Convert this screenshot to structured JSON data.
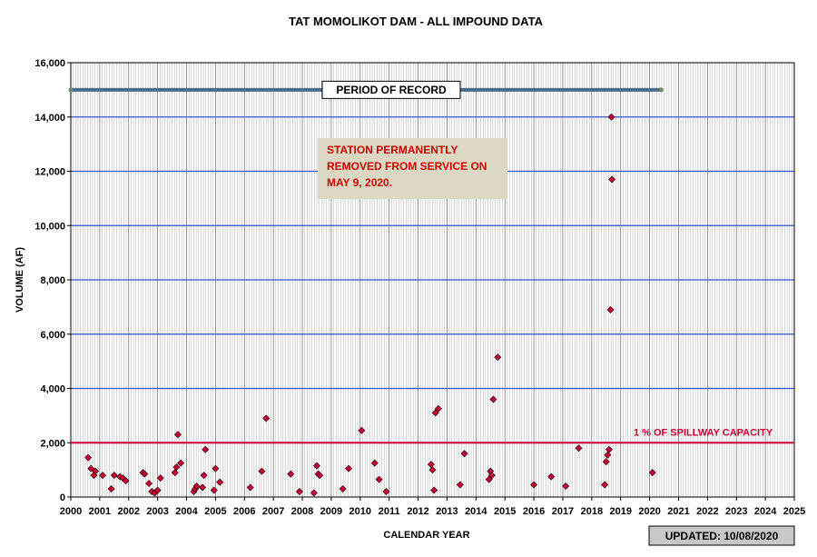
{
  "chart_data": {
    "type": "scatter",
    "title": "TAT MOMOLIKOT DAM - ALL IMPOUND DATA",
    "xlabel": "CALENDAR YEAR",
    "ylabel": "VOLUME (AF)",
    "xlim": [
      2000,
      2025
    ],
    "ylim": [
      0,
      16000
    ],
    "x_ticks": [
      "2000",
      "2001",
      "2002",
      "2003",
      "2004",
      "2005",
      "2006",
      "2007",
      "2008",
      "2009",
      "2010",
      "2011",
      "2012",
      "2013",
      "2014",
      "2015",
      "2016",
      "2017",
      "2018",
      "2019",
      "2020",
      "2021",
      "2022",
      "2023",
      "2024",
      "2025"
    ],
    "y_ticks": [
      "0",
      "2,000",
      "4,000",
      "6,000",
      "8,000",
      "10,000",
      "12,000",
      "14,000",
      "16,000"
    ],
    "grid": true,
    "series": [
      {
        "color": "#cc0033",
        "points": [
          [
            2000.6,
            1450
          ],
          [
            2000.7,
            1050
          ],
          [
            2000.8,
            800
          ],
          [
            2000.85,
            950
          ],
          [
            2001.1,
            800
          ],
          [
            2001.4,
            300
          ],
          [
            2001.5,
            800
          ],
          [
            2001.7,
            750
          ],
          [
            2001.8,
            700
          ],
          [
            2001.9,
            600
          ],
          [
            2002.5,
            900
          ],
          [
            2002.55,
            850
          ],
          [
            2002.7,
            500
          ],
          [
            2002.8,
            200
          ],
          [
            2002.9,
            150
          ],
          [
            2003.0,
            250
          ],
          [
            2003.1,
            700
          ],
          [
            2003.6,
            900
          ],
          [
            2003.65,
            1100
          ],
          [
            2003.7,
            2300
          ],
          [
            2003.8,
            1250
          ],
          [
            2004.25,
            200
          ],
          [
            2004.3,
            300
          ],
          [
            2004.35,
            400
          ],
          [
            2004.55,
            350
          ],
          [
            2004.6,
            800
          ],
          [
            2004.65,
            1750
          ],
          [
            2004.95,
            250
          ],
          [
            2005.0,
            1050
          ],
          [
            2005.15,
            550
          ],
          [
            2006.2,
            350
          ],
          [
            2006.6,
            950
          ],
          [
            2006.75,
            2900
          ],
          [
            2007.6,
            850
          ],
          [
            2007.9,
            200
          ],
          [
            2008.4,
            150
          ],
          [
            2008.5,
            1150
          ],
          [
            2008.55,
            850
          ],
          [
            2008.6,
            800
          ],
          [
            2009.4,
            300
          ],
          [
            2009.6,
            1050
          ],
          [
            2010.05,
            2450
          ],
          [
            2010.5,
            1250
          ],
          [
            2010.65,
            650
          ],
          [
            2010.9,
            200
          ],
          [
            2012.45,
            1200
          ],
          [
            2012.5,
            1000
          ],
          [
            2012.55,
            250
          ],
          [
            2012.6,
            3100
          ],
          [
            2012.7,
            3250
          ],
          [
            2013.45,
            450
          ],
          [
            2013.6,
            1600
          ],
          [
            2014.45,
            650
          ],
          [
            2014.5,
            950
          ],
          [
            2014.55,
            800
          ],
          [
            2014.6,
            3600
          ],
          [
            2014.75,
            5150
          ],
          [
            2016.0,
            450
          ],
          [
            2016.6,
            750
          ],
          [
            2017.1,
            400
          ],
          [
            2017.55,
            1800
          ],
          [
            2018.45,
            450
          ],
          [
            2018.5,
            1300
          ],
          [
            2018.55,
            1550
          ],
          [
            2018.6,
            1750
          ],
          [
            2018.65,
            6900
          ],
          [
            2018.68,
            14000
          ],
          [
            2018.7,
            11700
          ],
          [
            2020.1,
            900
          ]
        ]
      }
    ],
    "reference_lines": [
      {
        "label": "1 % OF SPILLWAY CAPACITY",
        "y": 2000,
        "color": "#cc0033"
      },
      {
        "label": "PERIOD OF RECORD",
        "y": 15000,
        "x_start": 2000,
        "x_end": 2020.4,
        "color": "#4a6a8a"
      }
    ],
    "annotation": {
      "text": [
        "STATION PERMANENTLY",
        "REMOVED FROM SERVICE ON",
        "MAY 9, 2020."
      ],
      "color": "#cc0000",
      "background": "#ddd8c3"
    },
    "updated": "UPDATED:  10/08/2020",
    "colors": {
      "grid_major": "#3355cc",
      "grid_minor": "#bbbbbb",
      "marker": "#cc0033",
      "record_bar": "#4a6a8a",
      "spillway_line": "#cc0033"
    }
  }
}
